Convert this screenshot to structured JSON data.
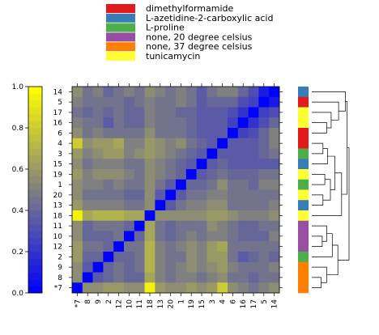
{
  "chart_data": {
    "type": "heatmap",
    "title": "",
    "labels_order": [
      "*7",
      "8",
      "9",
      "2",
      "12",
      "10",
      "11",
      "18",
      "13",
      "20",
      "1",
      "19",
      "15",
      "3",
      "4",
      "6",
      "16",
      "17",
      "5",
      "14"
    ],
    "row_labels_top_to_bottom": [
      "14",
      "5",
      "17",
      "16",
      "6",
      "4",
      "3",
      "15",
      "19",
      "1",
      "20",
      "13",
      "18",
      "11",
      "10",
      "12",
      "2",
      "9",
      "8",
      "*7"
    ],
    "legend": {
      "placement": "top",
      "entries": [
        {
          "label": "dimethylformamide",
          "color": "#e31a1c"
        },
        {
          "label": "L-azetidine-2-carboxylic acid",
          "color": "#377eb8"
        },
        {
          "label": "L-proline",
          "color": "#4daf4a"
        },
        {
          "label": "none, 20 degree celsius",
          "color": "#984ea3"
        },
        {
          "label": "none, 37 degree celsius",
          "color": "#ff7f00"
        },
        {
          "label": "tunicamycin",
          "color": "#ffff33"
        }
      ]
    },
    "colorbar": {
      "range": [
        0.0,
        1.0
      ],
      "ticks": [
        "0.0",
        "0.2",
        "0.4",
        "0.6",
        "0.8",
        "1.0"
      ],
      "low_color": "#0000ff",
      "mid_color": "#808080",
      "high_color": "#ffff00"
    },
    "row_conditions_top_to_bottom": [
      "L-azetidine-2-carboxylic acid",
      "dimethylformamide",
      "tunicamycin",
      "tunicamycin",
      "dimethylformamide",
      "dimethylformamide",
      "L-proline",
      "L-azetidine-2-carboxylic acid",
      "tunicamycin",
      "L-proline",
      "tunicamycin",
      "L-azetidine-2-carboxylic acid",
      "tunicamycin",
      "none, 20 degree celsius",
      "none, 20 degree celsius",
      "none, 20 degree celsius",
      "L-proline",
      "none, 37 degree celsius",
      "none, 37 degree celsius",
      "none, 37 degree celsius"
    ],
    "matrix_rows_top_to_bottom": [
      [
        0.55,
        0.45,
        0.5,
        0.4,
        0.45,
        0.5,
        0.45,
        0.55,
        0.5,
        0.45,
        0.5,
        0.45,
        0.35,
        0.45,
        0.5,
        0.5,
        0.4,
        0.3,
        0.1,
        0.0
      ],
      [
        0.5,
        0.45,
        0.45,
        0.45,
        0.45,
        0.4,
        0.45,
        0.5,
        0.45,
        0.45,
        0.5,
        0.45,
        0.35,
        0.4,
        0.4,
        0.4,
        0.3,
        0.25,
        0.0,
        0.1
      ],
      [
        0.45,
        0.4,
        0.45,
        0.4,
        0.45,
        0.4,
        0.4,
        0.5,
        0.45,
        0.45,
        0.4,
        0.4,
        0.35,
        0.35,
        0.35,
        0.3,
        0.2,
        0.0,
        0.25,
        0.3
      ],
      [
        0.5,
        0.45,
        0.45,
        0.35,
        0.45,
        0.4,
        0.4,
        0.5,
        0.45,
        0.45,
        0.45,
        0.4,
        0.35,
        0.35,
        0.35,
        0.25,
        0.0,
        0.2,
        0.3,
        0.4
      ],
      [
        0.55,
        0.45,
        0.5,
        0.45,
        0.45,
        0.45,
        0.45,
        0.55,
        0.45,
        0.45,
        0.45,
        0.4,
        0.35,
        0.35,
        0.35,
        0.0,
        0.25,
        0.3,
        0.4,
        0.5
      ],
      [
        0.8,
        0.55,
        0.6,
        0.6,
        0.65,
        0.5,
        0.5,
        0.6,
        0.55,
        0.5,
        0.55,
        0.45,
        0.4,
        0.35,
        0.0,
        0.35,
        0.35,
        0.35,
        0.4,
        0.5
      ],
      [
        0.6,
        0.5,
        0.55,
        0.6,
        0.6,
        0.5,
        0.55,
        0.6,
        0.55,
        0.5,
        0.45,
        0.4,
        0.35,
        0.0,
        0.35,
        0.35,
        0.35,
        0.35,
        0.4,
        0.45
      ],
      [
        0.55,
        0.45,
        0.5,
        0.5,
        0.5,
        0.45,
        0.45,
        0.55,
        0.5,
        0.45,
        0.4,
        0.35,
        0.0,
        0.35,
        0.4,
        0.35,
        0.35,
        0.35,
        0.35,
        0.35
      ],
      [
        0.6,
        0.5,
        0.55,
        0.55,
        0.55,
        0.5,
        0.45,
        0.55,
        0.5,
        0.45,
        0.4,
        0.0,
        0.35,
        0.4,
        0.45,
        0.4,
        0.4,
        0.4,
        0.45,
        0.45
      ],
      [
        0.55,
        0.5,
        0.5,
        0.45,
        0.5,
        0.45,
        0.45,
        0.55,
        0.45,
        0.35,
        0.0,
        0.4,
        0.4,
        0.45,
        0.55,
        0.45,
        0.45,
        0.4,
        0.5,
        0.5
      ],
      [
        0.55,
        0.45,
        0.45,
        0.45,
        0.45,
        0.4,
        0.4,
        0.55,
        0.35,
        0.0,
        0.35,
        0.45,
        0.45,
        0.5,
        0.5,
        0.45,
        0.45,
        0.45,
        0.45,
        0.45
      ],
      [
        0.6,
        0.5,
        0.5,
        0.5,
        0.5,
        0.45,
        0.45,
        0.55,
        0.0,
        0.35,
        0.45,
        0.5,
        0.5,
        0.55,
        0.55,
        0.45,
        0.45,
        0.45,
        0.45,
        0.5
      ],
      [
        0.95,
        0.65,
        0.7,
        0.7,
        0.7,
        0.65,
        0.65,
        0.0,
        0.55,
        0.55,
        0.55,
        0.55,
        0.55,
        0.6,
        0.6,
        0.55,
        0.5,
        0.5,
        0.5,
        0.55
      ],
      [
        0.55,
        0.4,
        0.45,
        0.45,
        0.45,
        0.4,
        0.0,
        0.65,
        0.45,
        0.4,
        0.45,
        0.45,
        0.45,
        0.55,
        0.5,
        0.45,
        0.4,
        0.4,
        0.45,
        0.45
      ],
      [
        0.55,
        0.4,
        0.4,
        0.4,
        0.45,
        0.0,
        0.4,
        0.65,
        0.45,
        0.4,
        0.45,
        0.5,
        0.45,
        0.5,
        0.5,
        0.45,
        0.4,
        0.4,
        0.4,
        0.5
      ],
      [
        0.6,
        0.45,
        0.45,
        0.4,
        0.0,
        0.45,
        0.45,
        0.7,
        0.5,
        0.45,
        0.5,
        0.55,
        0.5,
        0.6,
        0.65,
        0.45,
        0.45,
        0.45,
        0.45,
        0.45
      ],
      [
        0.6,
        0.4,
        0.4,
        0.0,
        0.4,
        0.4,
        0.45,
        0.7,
        0.5,
        0.45,
        0.45,
        0.55,
        0.5,
        0.6,
        0.6,
        0.45,
        0.35,
        0.4,
        0.45,
        0.4
      ],
      [
        0.55,
        0.35,
        0.0,
        0.4,
        0.45,
        0.4,
        0.45,
        0.7,
        0.5,
        0.45,
        0.5,
        0.55,
        0.5,
        0.55,
        0.6,
        0.5,
        0.45,
        0.45,
        0.45,
        0.5
      ],
      [
        0.55,
        0.0,
        0.35,
        0.4,
        0.45,
        0.4,
        0.4,
        0.65,
        0.5,
        0.45,
        0.5,
        0.5,
        0.45,
        0.5,
        0.55,
        0.45,
        0.45,
        0.4,
        0.45,
        0.45
      ],
      [
        0.0,
        0.55,
        0.55,
        0.6,
        0.6,
        0.55,
        0.55,
        0.95,
        0.6,
        0.55,
        0.55,
        0.6,
        0.55,
        0.6,
        0.8,
        0.55,
        0.5,
        0.45,
        0.5,
        0.55
      ]
    ],
    "dendrogram": "right",
    "grid": false
  }
}
